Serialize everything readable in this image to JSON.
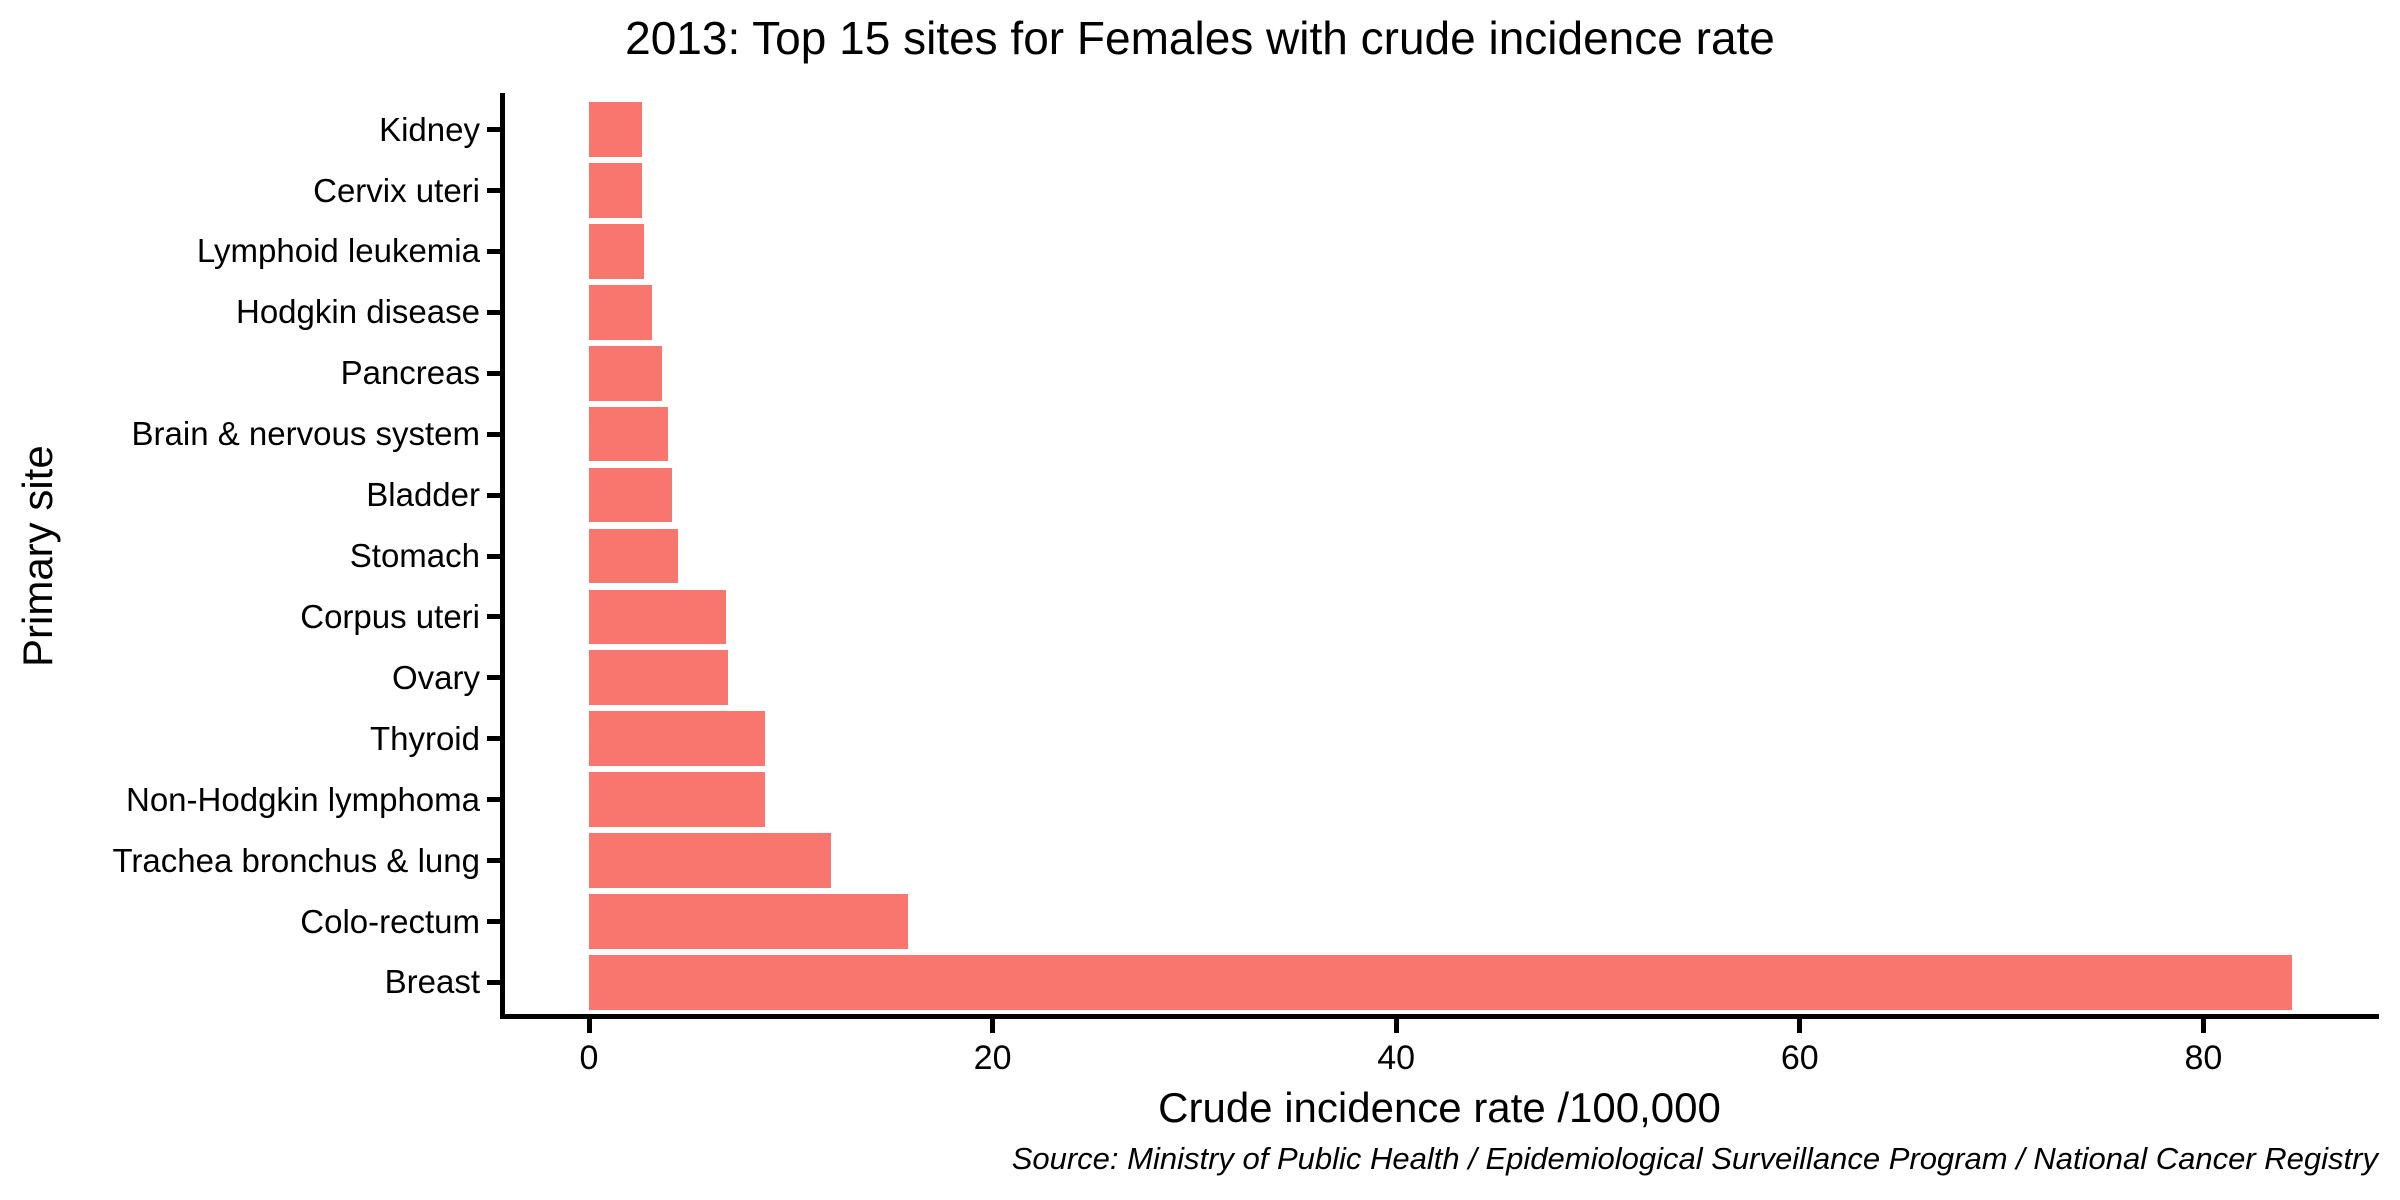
{
  "chart_data": {
    "type": "bar",
    "orientation": "horizontal",
    "title": "2013: Top 15 sites for Females with crude incidence rate",
    "xlabel": "Crude incidence rate /100,000",
    "ylabel": "Primary site",
    "source_note": "Source: Ministry of Public Health / Epidemiological Surveillance Program / National Cancer Registry",
    "categories": [
      "Kidney",
      "Cervix uteri",
      "Lymphoid leukemia",
      "Hodgkin disease",
      "Pancreas",
      "Brain & nervous system",
      "Bladder",
      "Stomach",
      "Corpus uteri",
      "Ovary",
      "Thyroid",
      "Non-Hodgkin lymphoma",
      "Trachea bronchus & lung",
      "Colo-rectum",
      "Breast"
    ],
    "values": [
      2.6,
      2.6,
      2.7,
      3.1,
      3.6,
      3.9,
      4.1,
      4.4,
      6.8,
      6.9,
      8.7,
      8.7,
      12.0,
      15.8,
      84.4
    ],
    "x_ticks": [
      0,
      20,
      40,
      60,
      80
    ],
    "xlim": [
      0,
      88.7
    ],
    "grid": false,
    "legend_position": "none",
    "bar_color": "#F8766D",
    "axis_color": "#000000",
    "text_color": "#000000"
  }
}
